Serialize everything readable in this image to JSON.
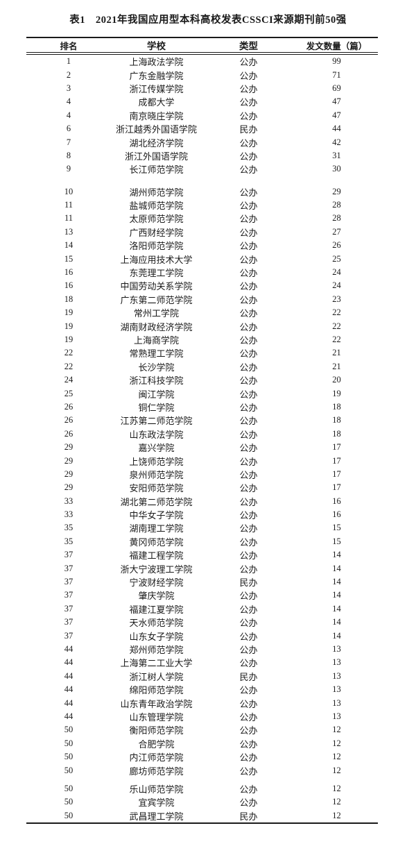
{
  "title": "表1　2021年我国应用型本科高校发表CSSCI来源期刊前50强",
  "colors": {
    "text": "#1a1a1a",
    "background": "#ffffff",
    "rule": "#1a1a1a"
  },
  "table": {
    "headers": {
      "rank": "排名",
      "school": "学校",
      "type": "类型",
      "count": "发文数量（篇）"
    },
    "sections": [
      {
        "rows": [
          {
            "rank": 1,
            "school": "上海政法学院",
            "type": "公办",
            "count": 99
          },
          {
            "rank": 2,
            "school": "广东金融学院",
            "type": "公办",
            "count": 71
          },
          {
            "rank": 3,
            "school": "浙江传媒学院",
            "type": "公办",
            "count": 69
          },
          {
            "rank": 4,
            "school": "成都大学",
            "type": "公办",
            "count": 47
          },
          {
            "rank": 4,
            "school": "南京晓庄学院",
            "type": "公办",
            "count": 47
          },
          {
            "rank": 6,
            "school": "浙江越秀外国语学院",
            "type": "民办",
            "count": 44
          },
          {
            "rank": 7,
            "school": "湖北经济学院",
            "type": "公办",
            "count": 42
          },
          {
            "rank": 8,
            "school": "浙江外国语学院",
            "type": "公办",
            "count": 31
          },
          {
            "rank": 9,
            "school": "长江师范学院",
            "type": "公办",
            "count": 30
          }
        ]
      },
      {
        "rows": [
          {
            "rank": 10,
            "school": "湖州师范学院",
            "type": "公办",
            "count": 29
          },
          {
            "rank": 11,
            "school": "盐城师范学院",
            "type": "公办",
            "count": 28
          },
          {
            "rank": 11,
            "school": "太原师范学院",
            "type": "公办",
            "count": 28
          },
          {
            "rank": 13,
            "school": "广西财经学院",
            "type": "公办",
            "count": 27
          },
          {
            "rank": 14,
            "school": "洛阳师范学院",
            "type": "公办",
            "count": 26
          },
          {
            "rank": 15,
            "school": "上海应用技术大学",
            "type": "公办",
            "count": 25
          },
          {
            "rank": 16,
            "school": "东莞理工学院",
            "type": "公办",
            "count": 24
          },
          {
            "rank": 16,
            "school": "中国劳动关系学院",
            "type": "公办",
            "count": 24
          },
          {
            "rank": 18,
            "school": "广东第二师范学院",
            "type": "公办",
            "count": 23
          },
          {
            "rank": 19,
            "school": "常州工学院",
            "type": "公办",
            "count": 22
          },
          {
            "rank": 19,
            "school": "湖南财政经济学院",
            "type": "公办",
            "count": 22
          },
          {
            "rank": 19,
            "school": "上海商学院",
            "type": "公办",
            "count": 22
          },
          {
            "rank": 22,
            "school": "常熟理工学院",
            "type": "公办",
            "count": 21
          },
          {
            "rank": 22,
            "school": "长沙学院",
            "type": "公办",
            "count": 21
          },
          {
            "rank": 24,
            "school": "浙江科技学院",
            "type": "公办",
            "count": 20
          },
          {
            "rank": 25,
            "school": "闽江学院",
            "type": "公办",
            "count": 19
          },
          {
            "rank": 26,
            "school": "铜仁学院",
            "type": "公办",
            "count": 18
          },
          {
            "rank": 26,
            "school": "江苏第二师范学院",
            "type": "公办",
            "count": 18
          },
          {
            "rank": 26,
            "school": "山东政法学院",
            "type": "公办",
            "count": 18
          },
          {
            "rank": 29,
            "school": "嘉兴学院",
            "type": "公办",
            "count": 17
          },
          {
            "rank": 29,
            "school": "上饶师范学院",
            "type": "公办",
            "count": 17
          },
          {
            "rank": 29,
            "school": "泉州师范学院",
            "type": "公办",
            "count": 17
          },
          {
            "rank": 29,
            "school": "安阳师范学院",
            "type": "公办",
            "count": 17
          },
          {
            "rank": 33,
            "school": "湖北第二师范学院",
            "type": "公办",
            "count": 16
          },
          {
            "rank": 33,
            "school": "中华女子学院",
            "type": "公办",
            "count": 16
          },
          {
            "rank": 35,
            "school": "湖南理工学院",
            "type": "公办",
            "count": 15
          },
          {
            "rank": 35,
            "school": "黄冈师范学院",
            "type": "公办",
            "count": 15
          },
          {
            "rank": 37,
            "school": "福建工程学院",
            "type": "公办",
            "count": 14
          },
          {
            "rank": 37,
            "school": "浙大宁波理工学院",
            "type": "公办",
            "count": 14
          },
          {
            "rank": 37,
            "school": "宁波财经学院",
            "type": "民办",
            "count": 14
          },
          {
            "rank": 37,
            "school": "肇庆学院",
            "type": "公办",
            "count": 14
          },
          {
            "rank": 37,
            "school": "福建江夏学院",
            "type": "公办",
            "count": 14
          },
          {
            "rank": 37,
            "school": "天水师范学院",
            "type": "公办",
            "count": 14
          },
          {
            "rank": 37,
            "school": "山东女子学院",
            "type": "公办",
            "count": 14
          },
          {
            "rank": 44,
            "school": "郑州师范学院",
            "type": "公办",
            "count": 13
          },
          {
            "rank": 44,
            "school": "上海第二工业大学",
            "type": "公办",
            "count": 13
          },
          {
            "rank": 44,
            "school": "浙江树人学院",
            "type": "民办",
            "count": 13
          },
          {
            "rank": 44,
            "school": "绵阳师范学院",
            "type": "公办",
            "count": 13
          },
          {
            "rank": 44,
            "school": "山东青年政治学院",
            "type": "公办",
            "count": 13
          },
          {
            "rank": 44,
            "school": "山东管理学院",
            "type": "公办",
            "count": 13
          },
          {
            "rank": 50,
            "school": "衡阳师范学院",
            "type": "公办",
            "count": 12
          },
          {
            "rank": 50,
            "school": "合肥学院",
            "type": "公办",
            "count": 12
          },
          {
            "rank": 50,
            "school": "内江师范学院",
            "type": "公办",
            "count": 12
          },
          {
            "rank": 50,
            "school": "廊坊师范学院",
            "type": "公办",
            "count": 12
          }
        ]
      },
      {
        "rows": [
          {
            "rank": 50,
            "school": "乐山师范学院",
            "type": "公办",
            "count": 12
          },
          {
            "rank": 50,
            "school": "宜宾学院",
            "type": "公办",
            "count": 12
          },
          {
            "rank": 50,
            "school": "武昌理工学院",
            "type": "民办",
            "count": 12
          }
        ]
      }
    ]
  }
}
